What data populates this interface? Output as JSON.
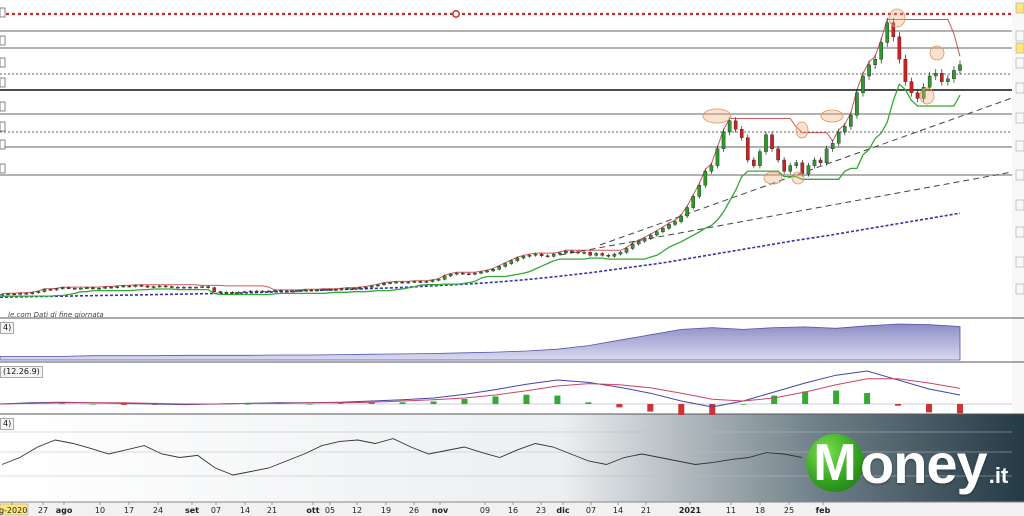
{
  "source_note": "le.com  Dati di fine giornata",
  "panel_labels": {
    "volume": "4)",
    "macd": "(12.26.9)",
    "bottom": "4)"
  },
  "brand": {
    "word": "oney",
    "initial": "M",
    "tld": ".it"
  },
  "x_axis_labels": [
    {
      "text": "ig-2020",
      "highlight": true
    },
    {
      "text": "27"
    },
    {
      "text": "ago",
      "bold": true
    },
    {
      "text": "10"
    },
    {
      "text": "17"
    },
    {
      "text": "24"
    },
    {
      "text": "set",
      "bold": true
    },
    {
      "text": "07"
    },
    {
      "text": "14"
    },
    {
      "text": "21"
    },
    {
      "text": "ott",
      "bold": true
    },
    {
      "text": "05"
    },
    {
      "text": "12"
    },
    {
      "text": "19"
    },
    {
      "text": "26"
    },
    {
      "text": "nov",
      "bold": true
    },
    {
      "text": "09"
    },
    {
      "text": "16"
    },
    {
      "text": "23"
    },
    {
      "text": "dic",
      "bold": true
    },
    {
      "text": "07"
    },
    {
      "text": "14"
    },
    {
      "text": "21"
    },
    {
      "text": "2021",
      "bold": true
    },
    {
      "text": "11"
    },
    {
      "text": "18"
    },
    {
      "text": "25"
    },
    {
      "text": "feb",
      "bold": true
    }
  ],
  "colors": {
    "up_candle": "#2e9a2e",
    "down_candle": "#cc2222",
    "support_green": "#33aa33",
    "resistance_red": "#c03030",
    "long_ma": "#3333aa",
    "volume_fill": "#9999cc",
    "macd_blue": "#4444aa",
    "macd_signal": "#cc4466",
    "hist_pos": "#33aa33",
    "hist_neg": "#cc3333",
    "brand_green": "#3aa52a"
  },
  "chart_data": [
    {
      "type": "line",
      "title": "",
      "description": "Daily candlestick price chart with trend lines, horizontal support/resistance levels and moving averages",
      "series": [
        {
          "name": "",
          "kind": "candlestick",
          "values": [
            1.0,
            1.01,
            1.0,
            1.02,
            1.01,
            1.03,
            1.05,
            1.09,
            1.08,
            1.1,
            1.12,
            1.11,
            1.1,
            1.11,
            1.12,
            1.1,
            1.11,
            1.13,
            1.12,
            1.14,
            1.15,
            1.14,
            1.16,
            1.15,
            1.13,
            1.14,
            1.15,
            1.14,
            1.13,
            1.12,
            1.13,
            1.12,
            1.13,
            1.14,
            1.12,
            1.05,
            1.03,
            1.04,
            1.03,
            1.04,
            1.05,
            1.06,
            1.05,
            1.06,
            1.05,
            1.07,
            1.06,
            1.05,
            1.06,
            1.07,
            1.08,
            1.07,
            1.08,
            1.09,
            1.08,
            1.09,
            1.1,
            1.11,
            1.1,
            1.12,
            1.13,
            1.15,
            1.17,
            1.2,
            1.21,
            1.22,
            1.21,
            1.22,
            1.23,
            1.22,
            1.23,
            1.25,
            1.27,
            1.33,
            1.36,
            1.38,
            1.37,
            1.36,
            1.38,
            1.4,
            1.42,
            1.45,
            1.5,
            1.55,
            1.6,
            1.65,
            1.68,
            1.7,
            1.72,
            1.69,
            1.68,
            1.72,
            1.74,
            1.77,
            1.76,
            1.74,
            1.75,
            1.7,
            1.73,
            1.7,
            1.68,
            1.72,
            1.75,
            1.82,
            1.9,
            1.95,
            2.0,
            2.06,
            2.12,
            2.18,
            2.25,
            2.3,
            2.4,
            2.55,
            2.75,
            2.95,
            3.2,
            3.3,
            3.6,
            3.9,
            4.1,
            3.95,
            3.8,
            3.4,
            3.3,
            3.55,
            3.85,
            3.6,
            3.4,
            3.2,
            3.3,
            3.35,
            3.15,
            3.3,
            3.4,
            3.35,
            3.6,
            3.7,
            3.9,
            4.0,
            4.2,
            4.6,
            4.9,
            5.1,
            5.2,
            5.5,
            5.85,
            5.6,
            5.2,
            4.8,
            4.6,
            4.5,
            4.7,
            4.9,
            4.95,
            4.8,
            4.85,
            5.0,
            5.1
          ]
        },
        {
          "name": "",
          "kind": "long_moving_average",
          "values": [
            0.95,
            0.96,
            0.97,
            0.98,
            0.99,
            1.0,
            1.01,
            1.02,
            1.04,
            1.06,
            1.08,
            1.1,
            1.12,
            1.15,
            1.18,
            1.22,
            1.27,
            1.33,
            1.4,
            1.48,
            1.56,
            1.66,
            1.76,
            1.86,
            1.96,
            2.05,
            2.15,
            2.25,
            2.35,
            2.45
          ]
        }
      ],
      "y_axis_side": "right",
      "horizontal_levels_note": "multiple horizontal support/resistance lines and a red dotted resistance line near the top",
      "grid": false,
      "legend": "none"
    },
    {
      "type": "area",
      "description": "Cumulative volume indicator panel",
      "series": [
        {
          "name": "",
          "values": [
            0.1,
            0.1,
            0.1,
            0.12,
            0.12,
            0.12,
            0.13,
            0.13,
            0.13,
            0.14,
            0.14,
            0.15,
            0.16,
            0.17,
            0.18,
            0.2,
            0.22,
            0.25,
            0.3,
            0.4,
            0.55,
            0.7,
            0.85,
            0.9,
            0.85,
            0.9,
            0.92,
            0.88,
            0.95,
            1.0,
            0.98,
            0.93
          ]
        }
      ]
    },
    {
      "type": "line",
      "description": "MACD panel (12,26,9) with histogram",
      "series": [
        {
          "name": "",
          "kind": "macd",
          "values": [
            0,
            0.02,
            0.03,
            0.02,
            0.01,
            0,
            -0.01,
            0.0,
            0.01,
            0.02,
            0.02,
            0.03,
            0.05,
            0.07,
            0.1,
            0.16,
            0.24,
            0.33,
            0.4,
            0.36,
            0.28,
            0.18,
            0.05,
            -0.05,
            0.05,
            0.2,
            0.35,
            0.48,
            0.55,
            0.4,
            0.25,
            0.15
          ]
        },
        {
          "name": "",
          "kind": "signal",
          "values": [
            0,
            0.01,
            0.02,
            0.02,
            0.02,
            0.01,
            0,
            0,
            0.01,
            0.01,
            0.02,
            0.02,
            0.03,
            0.05,
            0.07,
            0.1,
            0.15,
            0.22,
            0.3,
            0.34,
            0.32,
            0.27,
            0.18,
            0.08,
            0.05,
            0.1,
            0.2,
            0.32,
            0.42,
            0.42,
            0.35,
            0.26
          ]
        }
      ]
    },
    {
      "type": "line",
      "description": "Oscillator panel",
      "series": [
        {
          "name": "",
          "values": [
            0.45,
            0.55,
            0.7,
            0.8,
            0.75,
            0.68,
            0.6,
            0.66,
            0.72,
            0.6,
            0.55,
            0.58,
            0.4,
            0.3,
            0.35,
            0.4,
            0.5,
            0.6,
            0.72,
            0.78,
            0.8,
            0.75,
            0.82,
            0.7,
            0.6,
            0.65,
            0.7,
            0.62,
            0.55,
            0.66,
            0.75,
            0.7,
            0.6,
            0.5,
            0.45,
            0.55,
            0.6,
            0.55,
            0.5,
            0.45,
            0.48,
            0.52,
            0.55,
            0.62,
            0.6,
            0.55
          ]
        }
      ]
    }
  ]
}
